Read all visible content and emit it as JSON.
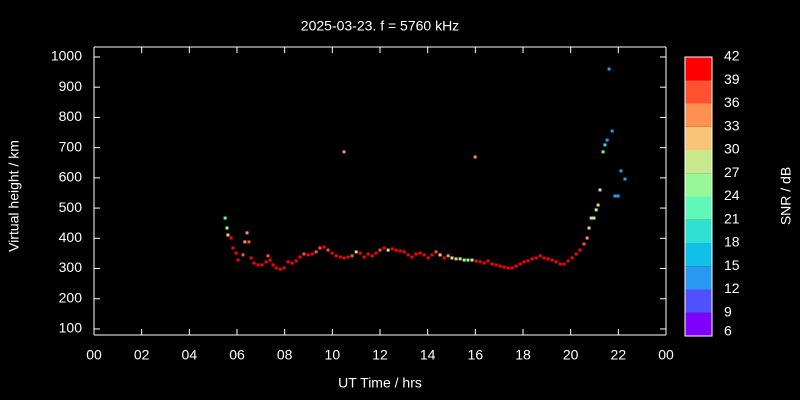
{
  "chart_data": {
    "type": "scatter",
    "title": "2025-03-23. f = 5760 kHz",
    "x_label": "UT Time / hrs",
    "y_label": "Virtual height / km",
    "xlim": [
      0,
      24
    ],
    "xticks": [
      {
        "value": 0,
        "label": "00"
      },
      {
        "value": 2,
        "label": "02"
      },
      {
        "value": 4,
        "label": "04"
      },
      {
        "value": 6,
        "label": "06"
      },
      {
        "value": 8,
        "label": "08"
      },
      10,
      12,
      14,
      16,
      18,
      20,
      22,
      {
        "value": 24,
        "label": "00"
      }
    ],
    "ylim": [
      80,
      1033
    ],
    "yticks": [
      100,
      200,
      300,
      400,
      500,
      600,
      700,
      800,
      900,
      1000
    ],
    "colorbar": {
      "label": "SNR / dB",
      "lim": [
        6,
        42
      ],
      "ticks": [
        6,
        9,
        12,
        15,
        18,
        21,
        24,
        27,
        30,
        33,
        36,
        39,
        42
      ],
      "colors": [
        "#8000ff",
        "#5050ff",
        "#2898f0",
        "#10c0e8",
        "#30e0d0",
        "#60f8b8",
        "#98f898",
        "#c8e88c",
        "#f8c478",
        "#ff9050",
        "#ff5030",
        "#ff0000"
      ]
    },
    "series": [
      {
        "x": [
          5.5,
          5.58,
          5.62,
          5.75,
          5.83,
          5.96,
          6.04,
          6.25,
          6.33,
          6.42,
          6.5,
          6.59,
          6.71,
          6.88,
          7.05,
          7.22,
          7.3,
          7.39,
          7.51,
          7.64,
          7.81,
          7.97,
          8.14,
          8.31,
          8.48,
          8.64,
          8.81,
          8.98,
          9.15,
          9.32,
          9.48,
          9.65,
          9.82,
          9.99,
          10.16,
          10.33,
          10.49,
          10.49,
          10.66,
          10.83,
          11.0,
          11.16,
          11.33,
          11.5,
          11.67,
          11.83,
          12.0,
          12.17,
          12.34,
          12.51,
          12.67,
          12.84,
          13.01,
          13.18,
          13.34,
          13.51,
          13.68,
          13.85,
          14.02,
          14.18,
          14.35,
          14.52,
          14.69,
          14.86,
          15.02,
          15.19,
          15.36,
          15.53,
          15.69,
          15.86,
          15.99,
          16.03,
          16.2,
          16.37,
          16.53,
          16.7,
          16.87,
          17.04,
          17.2,
          17.37,
          17.54,
          17.71,
          17.88,
          18.04,
          18.21,
          18.38,
          18.55,
          18.72,
          18.88,
          19.05,
          19.22,
          19.39,
          19.56,
          19.72,
          19.89,
          20.06,
          20.23,
          20.39,
          20.56,
          20.69,
          20.77,
          20.86,
          20.98,
          21.07,
          21.15,
          21.23,
          21.36,
          21.44,
          21.53,
          21.61,
          21.74,
          21.86,
          21.99,
          22.11,
          22.28
        ],
        "values": [
          467,
          434,
          411,
          401,
          368,
          351,
          328,
          345,
          388,
          418,
          388,
          335,
          318,
          312,
          312,
          322,
          342,
          328,
          312,
          302,
          298,
          302,
          322,
          318,
          325,
          338,
          348,
          345,
          348,
          355,
          368,
          371,
          361,
          351,
          342,
          338,
          686,
          335,
          338,
          342,
          355,
          351,
          338,
          348,
          342,
          351,
          361,
          368,
          361,
          365,
          361,
          358,
          355,
          345,
          338,
          348,
          351,
          345,
          335,
          345,
          355,
          345,
          335,
          342,
          335,
          332,
          332,
          328,
          328,
          328,
          669,
          325,
          322,
          318,
          325,
          315,
          312,
          308,
          305,
          302,
          302,
          308,
          315,
          322,
          325,
          332,
          335,
          342,
          335,
          332,
          328,
          322,
          315,
          315,
          325,
          335,
          348,
          361,
          381,
          401,
          434,
          467,
          467,
          494,
          510,
          560,
          686,
          709,
          725,
          960,
          755,
          540,
          540,
          623,
          596
        ],
        "snr": [
          22,
          24,
          30,
          39,
          40,
          40,
          40,
          38,
          33,
          34,
          36,
          40,
          41,
          41,
          41,
          41,
          38,
          40,
          41,
          41,
          41,
          41,
          40,
          40,
          40,
          40,
          38,
          40,
          40,
          38,
          38,
          39,
          38,
          40,
          40,
          40,
          34,
          40,
          40,
          38,
          29,
          40,
          40,
          40,
          40,
          40,
          38,
          40,
          28,
          40,
          40,
          40,
          40,
          40,
          40,
          40,
          40,
          40,
          40,
          40,
          38,
          32,
          40,
          35,
          29,
          30,
          28,
          26,
          26,
          28,
          33,
          40,
          40,
          40,
          40,
          40,
          40,
          40,
          40,
          40,
          40,
          40,
          40,
          40,
          40,
          40,
          40,
          39,
          40,
          40,
          40,
          40,
          40,
          40,
          40,
          40,
          40,
          40,
          38,
          35,
          31,
          28,
          27,
          27,
          30,
          27,
          23,
          18,
          13,
          12,
          12,
          12,
          12,
          12,
          12
        ]
      }
    ]
  }
}
